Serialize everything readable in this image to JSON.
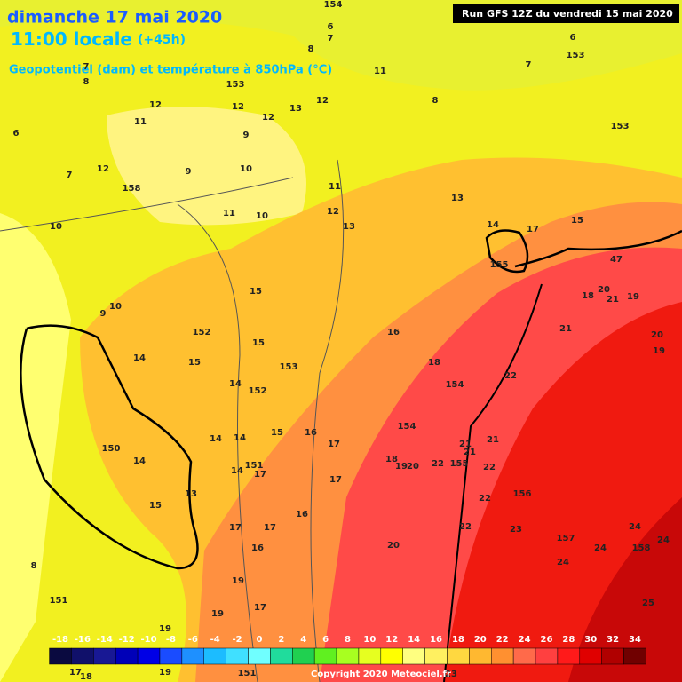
{
  "header": {
    "date": "dimanche 17 mai 2020",
    "time": "11:00 locale",
    "lead": "(+45h)",
    "subtitle": "Geopotentiel (dam) et température à 850hPa (°C)",
    "run": "Run GFS 12Z du vendredi 15 mai 2020"
  },
  "scale": {
    "ticks": [
      -18,
      -16,
      -14,
      -12,
      -10,
      -8,
      -6,
      -4,
      -2,
      0,
      2,
      4,
      6,
      8,
      10,
      12,
      14,
      16,
      18,
      20,
      22,
      24,
      26,
      28,
      30,
      32,
      34
    ],
    "colors": [
      "#0a0a40",
      "#10106a",
      "#181894",
      "#0000b8",
      "#0000e6",
      "#1a4cff",
      "#1e90ff",
      "#1cbcff",
      "#40e0ff",
      "#70ffff",
      "#20dc9c",
      "#20d050",
      "#60f020",
      "#a8ff20",
      "#e6ff20",
      "#ffff00",
      "#ffff80",
      "#fff060",
      "#ffd840",
      "#ffb830",
      "#ff9030",
      "#ff6a4a",
      "#ff4040",
      "#ff1a1a",
      "#e00000",
      "#b00000",
      "#700000"
    ]
  },
  "footer": {
    "copyright": "Copyright 2020 Meteociel.fr"
  },
  "map_labels": [
    "154",
    "6",
    "7",
    "8",
    "6",
    "153",
    "7",
    "7",
    "8",
    "11",
    "153",
    "12",
    "12",
    "13",
    "12",
    "8",
    "12",
    "11",
    "6",
    "9",
    "153",
    "12",
    "9",
    "10",
    "7",
    "158",
    "11",
    "13",
    "11",
    "10",
    "12",
    "10",
    "14",
    "13",
    "17",
    "15",
    "155",
    "47",
    "15",
    "18",
    "20",
    "21",
    "19",
    "10",
    "9",
    "152",
    "15",
    "16",
    "21",
    "20",
    "19",
    "14",
    "15",
    "153",
    "18",
    "22",
    "14",
    "152",
    "154",
    "154",
    "16",
    "17",
    "14",
    "14",
    "15",
    "21",
    "21",
    "150",
    "18",
    "19",
    "20",
    "22",
    "155",
    "21",
    "22",
    "14",
    "14",
    "151",
    "17",
    "17",
    "13",
    "156",
    "22",
    "15",
    "16",
    "17",
    "17",
    "22",
    "23",
    "157",
    "24",
    "20",
    "16",
    "24",
    "158",
    "8",
    "24",
    "24",
    "19",
    "17",
    "25",
    "151",
    "19",
    "19",
    "17",
    "18",
    "19",
    "151",
    "23"
  ]
}
